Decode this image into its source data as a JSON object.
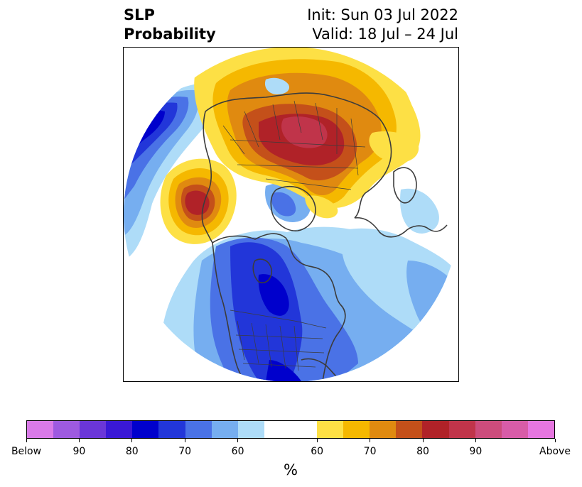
{
  "title": {
    "left_line1": "SLP",
    "left_line2": "Probability",
    "right_line1": "Init: Sun 03 Jul 2022",
    "right_line2": "Valid: 18 Jul – 24 Jul"
  },
  "colorbar": {
    "unit": "%",
    "below_colors": [
      "#d97ae8",
      "#9e5ae0",
      "#6b36d8",
      "#3a18d6",
      "#0000cc",
      "#2236d9",
      "#4a72e6",
      "#76aef0",
      "#aedcf8"
    ],
    "neutral_color": "#ffffff",
    "above_colors": [
      "#fde045",
      "#f5b800",
      "#e08a10",
      "#c4501a",
      "#b02228",
      "#c0344a",
      "#cc4c7c",
      "#d85ca8",
      "#e676e0"
    ],
    "labels": [
      "Below",
      "90",
      "80",
      "70",
      "60",
      "60",
      "70",
      "80",
      "90",
      "Above"
    ]
  },
  "map": {
    "palette": {
      "blue_light": "#aedcf8",
      "blue_mid": "#76aef0",
      "blue_med": "#4a72e6",
      "blue_strong": "#2236d9",
      "blue_deep": "#0000cc",
      "yellow": "#fde045",
      "gold": "#f5b800",
      "orange": "#e08a10",
      "rust": "#c4501a",
      "red": "#b02228",
      "crimson": "#c0344a",
      "coast": "#3c3c3c"
    }
  }
}
